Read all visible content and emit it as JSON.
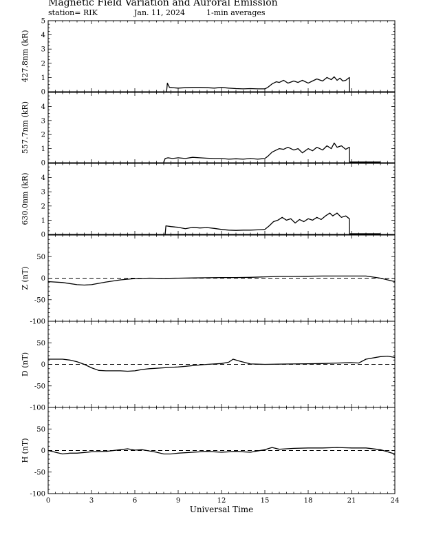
{
  "header": {
    "title": "Magnetic Field Variation and Auroral Emission",
    "station": "station= RIK",
    "date": "Jan. 11, 2024",
    "averaging": "1-min averages"
  },
  "chart_data": {
    "type": "line",
    "xlabel": "Universal Time",
    "xlim": [
      0,
      24
    ],
    "xticks": [
      "0",
      "3",
      "6",
      "9",
      "12",
      "15",
      "18",
      "21",
      "24"
    ],
    "panels": [
      {
        "id": "427",
        "ylabel": "427.8nm (kR)",
        "ylim": [
          0,
          5
        ],
        "yticks": [
          "0",
          "1",
          "2",
          "3",
          "4",
          "5"
        ],
        "zero_line": false,
        "series": [
          {
            "x": [
              8.2,
              8.25,
              8.4,
              8.6,
              9.0,
              9.5,
              10.0,
              10.5,
              11.0,
              11.5,
              12.0,
              12.5,
              13.0,
              13.5,
              14.0,
              14.5,
              15.0,
              15.2,
              15.5,
              15.8,
              16.0,
              16.3,
              16.6,
              17.0,
              17.3,
              17.6,
              18.0,
              18.3,
              18.6,
              19.0,
              19.3,
              19.6,
              19.8,
              20.0,
              20.2,
              20.4,
              20.6,
              20.85,
              20.86
            ],
            "y": [
              0.02,
              0.6,
              0.3,
              0.28,
              0.25,
              0.28,
              0.3,
              0.3,
              0.28,
              0.25,
              0.3,
              0.25,
              0.22,
              0.2,
              0.22,
              0.2,
              0.2,
              0.3,
              0.55,
              0.7,
              0.65,
              0.8,
              0.6,
              0.75,
              0.65,
              0.8,
              0.6,
              0.75,
              0.9,
              0.75,
              1.0,
              0.85,
              1.05,
              0.8,
              0.95,
              0.75,
              0.8,
              1.0,
              0.02
            ]
          }
        ]
      },
      {
        "id": "557",
        "ylabel": "557.7nm (kR)",
        "ylim": [
          0,
          5
        ],
        "yticks": [
          "0",
          "1",
          "2",
          "3",
          "4"
        ],
        "zero_line": false,
        "series": [
          {
            "x": [
              8.0,
              8.1,
              8.3,
              8.6,
              9.0,
              9.5,
              10.0,
              10.5,
              11.0,
              11.5,
              12.0,
              12.5,
              13.0,
              13.5,
              14.0,
              14.5,
              15.0,
              15.2,
              15.5,
              15.8,
              16.0,
              16.3,
              16.6,
              17.0,
              17.3,
              17.6,
              18.0,
              18.3,
              18.6,
              19.0,
              19.3,
              19.6,
              19.8,
              20.0,
              20.3,
              20.6,
              20.85,
              20.86,
              21.0,
              23.0
            ],
            "y": [
              0.02,
              0.3,
              0.35,
              0.3,
              0.35,
              0.3,
              0.38,
              0.35,
              0.32,
              0.3,
              0.3,
              0.25,
              0.28,
              0.25,
              0.3,
              0.25,
              0.3,
              0.45,
              0.75,
              0.9,
              1.0,
              0.95,
              1.1,
              0.9,
              1.0,
              0.7,
              1.0,
              0.85,
              1.1,
              0.9,
              1.2,
              1.0,
              1.4,
              1.1,
              1.2,
              0.95,
              1.1,
              0.05,
              0.05,
              0.05
            ]
          }
        ]
      },
      {
        "id": "630",
        "ylabel": "630.0nm (kR)",
        "ylim": [
          0,
          5
        ],
        "yticks": [
          "0",
          "1",
          "2",
          "3",
          "4"
        ],
        "zero_line": false,
        "series": [
          {
            "x": [
              8.1,
              8.15,
              8.5,
              9.0,
              9.5,
              10.0,
              10.5,
              11.0,
              11.5,
              12.0,
              12.5,
              13.0,
              13.5,
              14.0,
              14.5,
              15.0,
              15.3,
              15.6,
              15.9,
              16.2,
              16.5,
              16.8,
              17.1,
              17.4,
              17.7,
              18.0,
              18.3,
              18.6,
              18.9,
              19.2,
              19.5,
              19.7,
              20.0,
              20.3,
              20.6,
              20.85,
              20.86,
              21.0,
              23.0
            ],
            "y": [
              0.02,
              0.6,
              0.55,
              0.5,
              0.4,
              0.5,
              0.45,
              0.48,
              0.42,
              0.35,
              0.3,
              0.28,
              0.3,
              0.3,
              0.32,
              0.35,
              0.6,
              0.9,
              1.0,
              1.2,
              1.0,
              1.1,
              0.8,
              1.05,
              0.9,
              1.1,
              1.0,
              1.2,
              1.05,
              1.3,
              1.5,
              1.3,
              1.5,
              1.2,
              1.3,
              1.1,
              0.05,
              0.05,
              0.05
            ]
          }
        ]
      },
      {
        "id": "Z",
        "ylabel": "Z (nT)",
        "ylim": [
          -100,
          100
        ],
        "yticks": [
          "-100",
          "-50",
          "0",
          "50"
        ],
        "zero_line": true,
        "series": [
          {
            "x": [
              0,
              1,
              2,
              2.5,
              3,
              4,
              5,
              6,
              7,
              8,
              9,
              10,
              11,
              12,
              13,
              14,
              15,
              16,
              17,
              18,
              19,
              20,
              21,
              22,
              23,
              24
            ],
            "y": [
              -8,
              -10,
              -15,
              -16,
              -15,
              -9,
              -4,
              -1,
              0,
              -0.5,
              0,
              0.5,
              1,
              1.5,
              1.5,
              2,
              3,
              4,
              4,
              4.5,
              5,
              5,
              5,
              5,
              0,
              -8
            ]
          }
        ]
      },
      {
        "id": "D",
        "ylabel": "D (nT)",
        "ylim": [
          -100,
          100
        ],
        "yticks": [
          "-100",
          "-50",
          "0",
          "50"
        ],
        "zero_line": true,
        "series": [
          {
            "x": [
              0,
              0.5,
              1,
              1.5,
              2,
              2.5,
              3,
              3.5,
              4,
              5,
              5.5,
              6,
              6.5,
              7,
              8,
              9,
              10,
              11,
              12,
              12.5,
              12.8,
              13.3,
              14,
              15,
              16,
              17,
              18,
              19,
              20,
              21,
              21.5,
              22,
              23,
              23.5,
              24
            ],
            "y": [
              12,
              12,
              12,
              10,
              6,
              0,
              -8,
              -14,
              -15,
              -15,
              -16,
              -15,
              -12,
              -10,
              -8,
              -6,
              -3,
              0,
              2,
              5,
              12,
              7,
              1,
              0,
              0.5,
              1,
              1.5,
              2,
              3,
              4,
              3,
              12,
              18,
              19,
              16
            ]
          }
        ]
      },
      {
        "id": "H",
        "ylabel": "H (nT)",
        "ylim": [
          -100,
          100
        ],
        "yticks": [
          "-100",
          "-50",
          "0",
          "50"
        ],
        "zero_line": true,
        "series": [
          {
            "x": [
              0,
              0.5,
              1,
              1.5,
              2,
              3,
              4,
              5,
              5.5,
              6,
              6.5,
              7,
              7.5,
              8,
              8.5,
              9,
              10,
              11,
              12,
              13,
              14,
              15,
              15.5,
              16,
              17,
              18,
              19,
              20,
              21,
              22,
              23,
              24
            ],
            "y": [
              0,
              -4,
              -8,
              -6,
              -6,
              -3,
              -2,
              2,
              4,
              1,
              2,
              -1,
              -4,
              -8,
              -8,
              -6,
              -4,
              -2,
              -4,
              -2,
              -4,
              2,
              7,
              3,
              5,
              6,
              6,
              7,
              6,
              6,
              2,
              -8
            ]
          }
        ]
      }
    ]
  }
}
